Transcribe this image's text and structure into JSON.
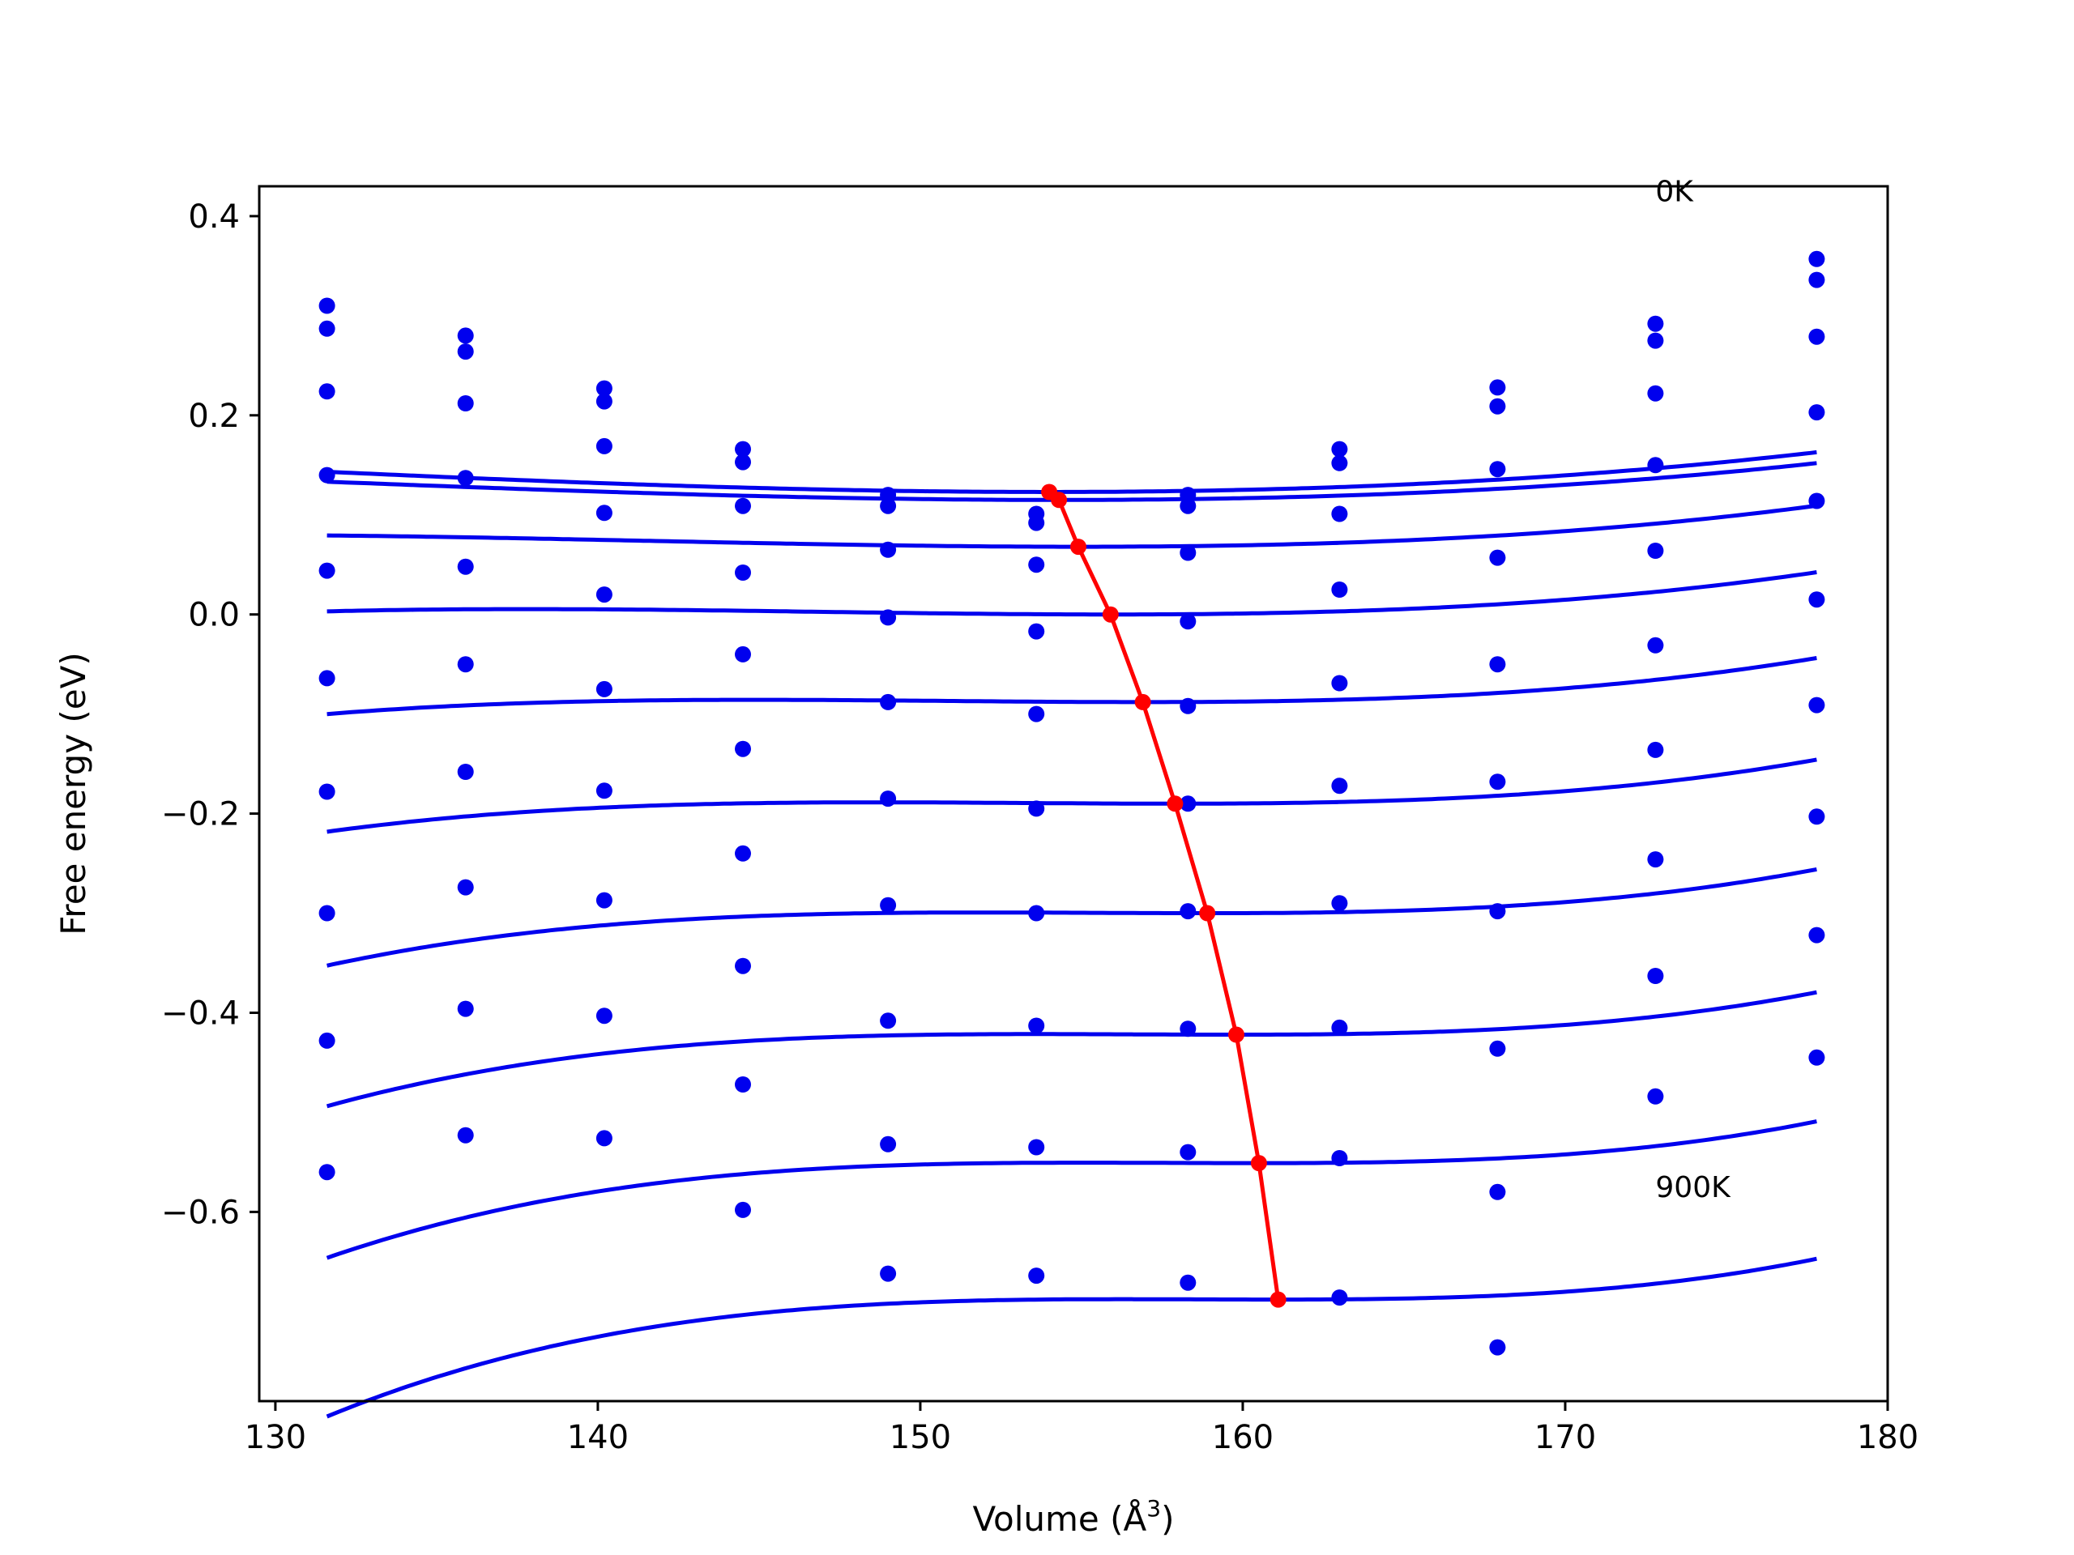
{
  "chart_data": {
    "type": "scatter",
    "title": "",
    "xlabel": "Volume (Å",
    "xlabel_sup": "3",
    "xlabel_close": ")",
    "ylabel": "Free energy (eV)",
    "xlim": [
      129.5,
      180
    ],
    "ylim": [
      -0.79,
      0.43
    ],
    "xticks": [
      130,
      140,
      150,
      160,
      170,
      180
    ],
    "xtick_labels": [
      "130",
      "140",
      "150",
      "160",
      "170",
      "180"
    ],
    "yticks": [
      -0.6,
      -0.4,
      -0.2,
      0.0,
      0.2,
      0.4
    ],
    "ytick_labels": [
      "−0.6",
      "−0.4",
      "−0.2",
      "0.0",
      "0.2",
      "0.4"
    ],
    "grid": false,
    "annotations": [
      {
        "text": "0K",
        "x": 172.8,
        "y": 0.415
      },
      {
        "text": "900K",
        "x": 172.8,
        "y": -0.585
      }
    ],
    "colors": {
      "points": "#0000ee",
      "fits": "#0000ee",
      "minima": "#ff0000"
    },
    "x": [
      131.6,
      135.9,
      140.2,
      144.5,
      149.0,
      153.6,
      158.3,
      163.0,
      167.9,
      172.8,
      177.8
    ],
    "series": [
      {
        "values": [
          0.31,
          0.28,
          0.227,
          0.166,
          0.12,
          0.101,
          0.12,
          0.166,
          0.228,
          0.292,
          0.357
        ],
        "fit": {
          "vmin": 154.0,
          "fmin": 0.123,
          "a": 5.5e-05,
          "b": 6.5e-07
        }
      },
      {
        "values": [
          0.287,
          0.264,
          0.214,
          0.153,
          0.109,
          0.092,
          0.109,
          0.152,
          0.209,
          0.275,
          0.336
        ],
        "fit": {
          "vmin": 154.3,
          "fmin": 0.115,
          "a": 5.1e-05,
          "b": 6.8e-07
        }
      },
      {
        "values": [
          0.224,
          0.212,
          0.169,
          0.109,
          0.065,
          0.05,
          0.062,
          0.101,
          0.146,
          0.222,
          0.279
        ],
        "fit": {
          "vmin": 154.9,
          "fmin": 0.068,
          "a": 5e-05,
          "b": 1.25e-06
        }
      },
      {
        "values": [
          0.14,
          0.137,
          0.102,
          0.042,
          -0.003,
          -0.017,
          -0.007,
          0.025,
          0.057,
          0.15,
          0.203
        ],
        "fit": {
          "vmin": 155.9,
          "fmin": 0.0,
          "a": 4.9e-05,
          "b": 1.8e-06
        }
      },
      {
        "values": [
          0.044,
          0.048,
          0.02,
          -0.04,
          -0.088,
          -0.1,
          -0.092,
          -0.069,
          -0.05,
          0.064,
          0.114
        ],
        "fit": {
          "vmin": 156.9,
          "fmin": -0.088,
          "a": 4.7e-05,
          "b": 2.6e-06
        }
      },
      {
        "values": [
          -0.064,
          -0.05,
          -0.075,
          -0.135,
          -0.185,
          -0.195,
          -0.19,
          -0.172,
          -0.168,
          -0.031,
          0.015
        ],
        "fit": {
          "vmin": 157.9,
          "fmin": -0.19,
          "a": 4.6e-05,
          "b": 3.3e-06
        }
      },
      {
        "values": [
          -0.178,
          -0.158,
          -0.177,
          -0.24,
          -0.292,
          -0.3,
          -0.298,
          -0.29,
          -0.298,
          -0.136,
          -0.091
        ],
        "fit": {
          "vmin": 158.9,
          "fmin": -0.3,
          "a": 4.4e-05,
          "b": 4.2e-06
        }
      },
      {
        "values": [
          -0.3,
          -0.274,
          -0.287,
          -0.353,
          -0.408,
          -0.413,
          -0.416,
          -0.415,
          -0.436,
          -0.246,
          -0.203
        ],
        "fit": {
          "vmin": 159.8,
          "fmin": -0.422,
          "a": 4.5e-05,
          "b": 4.8e-06
        }
      },
      {
        "values": [
          -0.428,
          -0.396,
          -0.403,
          -0.472,
          -0.532,
          -0.535,
          -0.54,
          -0.546,
          -0.58,
          -0.363,
          -0.322
        ],
        "fit": {
          "vmin": 160.5,
          "fmin": -0.551,
          "a": 4.5e-05,
          "b": 5.5e-06
        }
      },
      {
        "values": [
          -0.56,
          -0.523,
          -0.526,
          -0.598,
          -0.662,
          -0.664,
          -0.671,
          -0.686,
          -0.736,
          -0.484,
          -0.445
        ],
        "fit": {
          "vmin": 161.1,
          "fmin": -0.688,
          "a": 4.5e-05,
          "b": 6.1e-06
        }
      }
    ],
    "minima": {
      "x": [
        154.0,
        154.3,
        154.9,
        155.9,
        156.9,
        157.9,
        158.9,
        159.8,
        160.5,
        161.1
      ],
      "y": [
        0.123,
        0.115,
        0.068,
        0.0,
        -0.088,
        -0.19,
        -0.3,
        -0.422,
        -0.551,
        -0.688
      ]
    }
  }
}
